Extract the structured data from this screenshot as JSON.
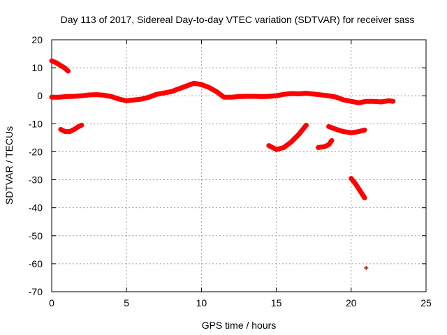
{
  "chart_data": {
    "type": "scatter",
    "title": "Day 113 of 2017, Sidereal Day-to-day VTEC variation (SDTVAR) for receiver sass",
    "xlabel": "GPS time / hours",
    "ylabel": "SDTVAR / TECUs",
    "xlim": [
      0,
      25
    ],
    "ylim": [
      -70,
      20
    ],
    "x_ticks": [
      0,
      5,
      10,
      15,
      20,
      25
    ],
    "y_ticks": [
      20,
      10,
      0,
      -10,
      -20,
      -30,
      -40,
      -50,
      -60,
      -70
    ],
    "x_tick_labels": [
      "0",
      "5",
      "10",
      "15",
      "20",
      "25"
    ],
    "y_tick_labels": [
      "20",
      "10",
      "0",
      "-10",
      "-20",
      "-30",
      "-40",
      "-50",
      "-60",
      "-70"
    ],
    "grid": true,
    "marker": "plus",
    "color": "#ff0000",
    "series": [
      {
        "name": "main_trace",
        "points": [
          [
            0.0,
            -0.5
          ],
          [
            0.5,
            -0.5
          ],
          [
            1.0,
            -0.3
          ],
          [
            1.5,
            -0.2
          ],
          [
            2.0,
            0.0
          ],
          [
            2.5,
            0.3
          ],
          [
            3.0,
            0.4
          ],
          [
            3.5,
            0.2
          ],
          [
            4.0,
            -0.3
          ],
          [
            4.5,
            -1.2
          ],
          [
            5.0,
            -1.8
          ],
          [
            5.5,
            -1.5
          ],
          [
            6.0,
            -1.2
          ],
          [
            6.5,
            -0.5
          ],
          [
            7.0,
            0.5
          ],
          [
            7.5,
            1.0
          ],
          [
            8.0,
            1.5
          ],
          [
            8.5,
            2.5
          ],
          [
            9.0,
            3.5
          ],
          [
            9.5,
            4.5
          ],
          [
            10.0,
            4.0
          ],
          [
            10.5,
            3.0
          ],
          [
            11.0,
            1.5
          ],
          [
            11.5,
            -0.5
          ],
          [
            12.0,
            -0.5
          ],
          [
            12.5,
            -0.3
          ],
          [
            13.0,
            -0.2
          ],
          [
            13.5,
            -0.2
          ],
          [
            14.0,
            -0.3
          ],
          [
            14.5,
            -0.2
          ],
          [
            15.0,
            0.0
          ],
          [
            15.5,
            0.5
          ],
          [
            16.0,
            0.8
          ],
          [
            16.5,
            0.7
          ],
          [
            17.0,
            0.9
          ],
          [
            17.5,
            0.6
          ],
          [
            18.0,
            0.3
          ],
          [
            18.5,
            0.0
          ],
          [
            19.0,
            -0.5
          ],
          [
            19.5,
            -1.5
          ],
          [
            20.0,
            -2.0
          ],
          [
            20.5,
            -2.5
          ],
          [
            21.0,
            -2.0
          ],
          [
            21.5,
            -2.0
          ],
          [
            22.0,
            -2.2
          ],
          [
            22.5,
            -1.8
          ],
          [
            22.8,
            -2.0
          ]
        ]
      },
      {
        "name": "arc_early_high",
        "points": [
          [
            0.0,
            12.5
          ],
          [
            0.3,
            11.8
          ],
          [
            0.6,
            10.8
          ],
          [
            0.9,
            9.8
          ],
          [
            1.1,
            8.8
          ]
        ]
      },
      {
        "name": "arc_early_low",
        "points": [
          [
            0.6,
            -12.0
          ],
          [
            0.9,
            -12.8
          ],
          [
            1.2,
            -12.8
          ],
          [
            1.5,
            -12.0
          ],
          [
            1.8,
            -11.0
          ],
          [
            2.0,
            -10.5
          ]
        ]
      },
      {
        "name": "arc_15h",
        "points": [
          [
            14.5,
            -17.8
          ],
          [
            15.0,
            -19.2
          ],
          [
            15.5,
            -18.5
          ],
          [
            16.0,
            -16.5
          ],
          [
            16.5,
            -13.8
          ],
          [
            17.0,
            -10.5
          ]
        ]
      },
      {
        "name": "arc_18h",
        "points": [
          [
            17.8,
            -18.5
          ],
          [
            18.2,
            -18.2
          ],
          [
            18.5,
            -17.5
          ],
          [
            18.7,
            -16.0
          ]
        ]
      },
      {
        "name": "arc_19h",
        "points": [
          [
            18.5,
            -11.0
          ],
          [
            19.0,
            -12.0
          ],
          [
            19.5,
            -12.8
          ],
          [
            20.0,
            -13.2
          ],
          [
            20.5,
            -12.8
          ],
          [
            20.9,
            -12.2
          ]
        ]
      },
      {
        "name": "arc_20h_steep",
        "points": [
          [
            20.0,
            -29.5
          ],
          [
            20.3,
            -31.5
          ],
          [
            20.6,
            -34.0
          ],
          [
            20.9,
            -36.5
          ]
        ]
      },
      {
        "name": "outlier",
        "points": [
          [
            21.0,
            -61.5
          ]
        ]
      }
    ]
  }
}
